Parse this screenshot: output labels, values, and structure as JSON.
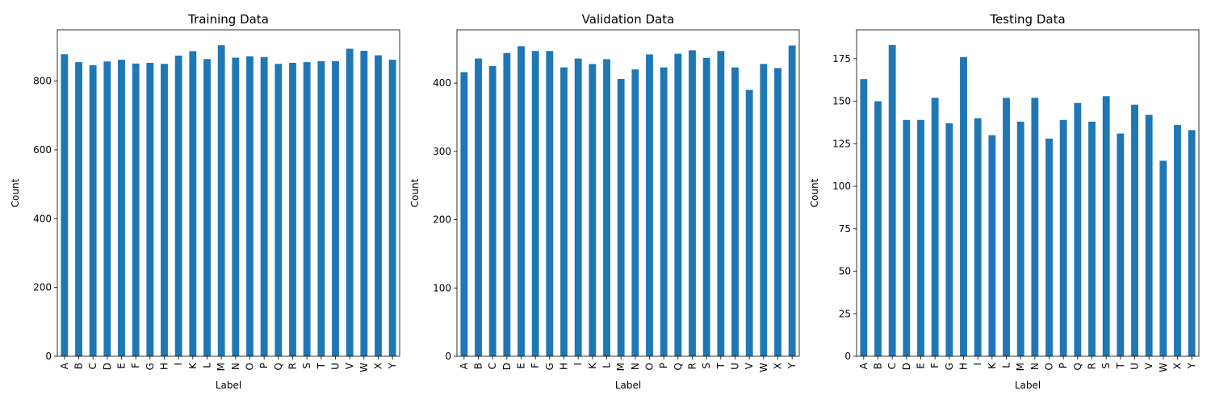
{
  "chart_data": [
    {
      "type": "bar",
      "title": "Training Data",
      "xlabel": "Label",
      "ylabel": "Count",
      "categories": [
        "A",
        "B",
        "C",
        "D",
        "E",
        "F",
        "G",
        "H",
        "I",
        "K",
        "L",
        "M",
        "N",
        "O",
        "P",
        "Q",
        "R",
        "S",
        "T",
        "U",
        "V",
        "W",
        "X",
        "Y"
      ],
      "values": [
        878,
        855,
        846,
        857,
        862,
        851,
        853,
        850,
        874,
        887,
        864,
        904,
        868,
        872,
        870,
        850,
        853,
        855,
        858,
        858,
        894,
        888,
        875,
        862
      ],
      "yticks": [
        0,
        200,
        400,
        600,
        800
      ],
      "ylim": [
        0,
        949
      ],
      "color": "#1f77b4"
    },
    {
      "type": "bar",
      "title": "Validation Data",
      "xlabel": "Label",
      "ylabel": "Count",
      "categories": [
        "A",
        "B",
        "C",
        "D",
        "E",
        "F",
        "G",
        "H",
        "I",
        "K",
        "L",
        "M",
        "N",
        "O",
        "P",
        "Q",
        "R",
        "S",
        "T",
        "U",
        "V",
        "W",
        "X",
        "Y"
      ],
      "values": [
        416,
        436,
        425,
        444,
        454,
        447,
        447,
        423,
        436,
        428,
        435,
        406,
        420,
        442,
        423,
        443,
        448,
        437,
        447,
        423,
        390,
        428,
        422,
        455
      ],
      "yticks": [
        0,
        100,
        200,
        300,
        400
      ],
      "ylim": [
        0,
        478
      ],
      "color": "#1f77b4"
    },
    {
      "type": "bar",
      "title": "Testing Data",
      "xlabel": "Label",
      "ylabel": "Count",
      "categories": [
        "A",
        "B",
        "C",
        "D",
        "E",
        "F",
        "G",
        "H",
        "I",
        "K",
        "L",
        "M",
        "N",
        "O",
        "P",
        "Q",
        "R",
        "S",
        "T",
        "U",
        "V",
        "W",
        "X",
        "Y"
      ],
      "values": [
        163,
        150,
        183,
        139,
        139,
        152,
        137,
        176,
        140,
        130,
        152,
        138,
        152,
        128,
        139,
        149,
        138,
        153,
        131,
        148,
        142,
        115,
        136,
        133
      ],
      "yticks": [
        0,
        25,
        50,
        75,
        100,
        125,
        150,
        175
      ],
      "ylim": [
        0,
        192
      ],
      "color": "#1f77b4"
    }
  ]
}
